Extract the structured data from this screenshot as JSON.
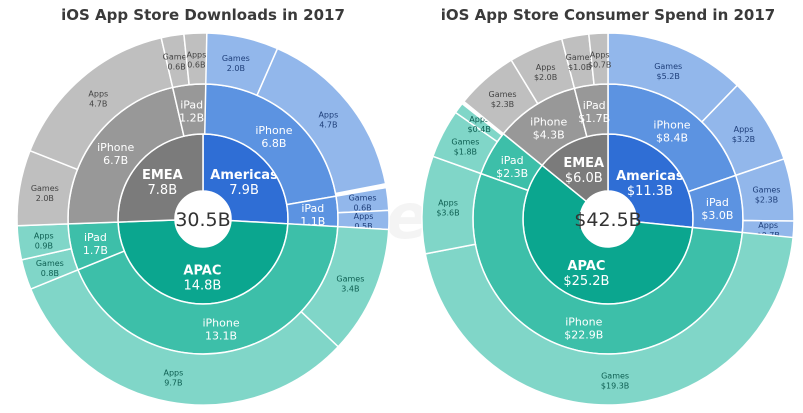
{
  "watermark": "App Annie",
  "colors": {
    "Americas": [
      "#2f6ed5",
      "#5c93e1",
      "#92b7eb"
    ],
    "APAC": [
      "#0ba68f",
      "#3dbfa9",
      "#80d6c8"
    ],
    "EMEA": [
      "#7b7b7b",
      "#989898",
      "#bfbfbf"
    ],
    "leaf_text": {
      "Americas": "#1f3f7a",
      "APAC": "#0e5f52",
      "EMEA": "#444444"
    }
  },
  "chart_data": [
    {
      "type": "sunburst",
      "title": "iOS App Store Downloads in 2017",
      "unit_prefix": "",
      "total_label": "30.5B",
      "total": 30.5,
      "children": [
        {
          "name": "Americas",
          "value": 7.9,
          "label": "7.9B",
          "children": [
            {
              "name": "iPhone",
              "value": 6.8,
              "label": "6.8B",
              "children": [
                {
                  "name": "Games",
                  "value": 2.0,
                  "label": "2.0B"
                },
                {
                  "name": "Apps",
                  "value": 4.7,
                  "label": "4.7B"
                }
              ]
            },
            {
              "name": "iPad",
              "value": 1.1,
              "label": "1.1B",
              "children": [
                {
                  "name": "Games",
                  "value": 0.6,
                  "label": "0.6B"
                },
                {
                  "name": "Apps",
                  "value": 0.5,
                  "label": "0.5B"
                }
              ]
            }
          ]
        },
        {
          "name": "APAC",
          "value": 14.8,
          "label": "14.8B",
          "children": [
            {
              "name": "iPhone",
              "value": 13.1,
              "label": "13.1B",
              "children": [
                {
                  "name": "Games",
                  "value": 3.4,
                  "label": "3.4B"
                },
                {
                  "name": "Apps",
                  "value": 9.7,
                  "label": "9.7B"
                }
              ]
            },
            {
              "name": "iPad",
              "value": 1.7,
              "label": "1.7B",
              "children": [
                {
                  "name": "Games",
                  "value": 0.8,
                  "label": "0.8B"
                },
                {
                  "name": "Apps",
                  "value": 0.9,
                  "label": "0.9B"
                }
              ]
            }
          ]
        },
        {
          "name": "EMEA",
          "value": 7.8,
          "label": "7.8B",
          "children": [
            {
              "name": "iPhone",
              "value": 6.7,
              "label": "6.7B",
              "children": [
                {
                  "name": "Games",
                  "value": 2.0,
                  "label": "2.0B"
                },
                {
                  "name": "Apps",
                  "value": 4.7,
                  "label": "4.7B"
                }
              ]
            },
            {
              "name": "iPad",
              "value": 1.2,
              "label": "1.2B",
              "children": [
                {
                  "name": "Games",
                  "value": 0.6,
                  "label": "0.6B"
                },
                {
                  "name": "Apps",
                  "value": 0.6,
                  "label": "0.6B"
                }
              ]
            }
          ]
        }
      ]
    },
    {
      "type": "sunburst",
      "title": "iOS App Store Consumer Spend in 2017",
      "total_label": "$42.5B",
      "total": 42.5,
      "children": [
        {
          "name": "Americas",
          "value": 11.3,
          "label": "$11.3B",
          "children": [
            {
              "name": "iPhone",
              "value": 8.4,
              "label": "$8.4B",
              "children": [
                {
                  "name": "Games",
                  "value": 5.2,
                  "label": "$5.2B"
                },
                {
                  "name": "Apps",
                  "value": 3.2,
                  "label": "$3.2B"
                }
              ]
            },
            {
              "name": "iPad",
              "value": 3.0,
              "label": "$3.0B",
              "children": [
                {
                  "name": "Games",
                  "value": 2.3,
                  "label": "$2.3B"
                },
                {
                  "name": "Apps",
                  "value": 0.7,
                  "label": "$0.7B"
                }
              ]
            }
          ]
        },
        {
          "name": "APAC",
          "value": 25.2,
          "label": "$25.2B",
          "children": [
            {
              "name": "iPhone",
              "value": 22.9,
              "label": "$22.9B",
              "children": [
                {
                  "name": "Games",
                  "value": 19.3,
                  "label": "$19.3B"
                },
                {
                  "name": "Apps",
                  "value": 3.6,
                  "label": "$3.6B"
                }
              ]
            },
            {
              "name": "iPad",
              "value": 2.3,
              "label": "$2.3B",
              "children": [
                {
                  "name": "Games",
                  "value": 1.8,
                  "label": "$1.8B"
                },
                {
                  "name": "Apps",
                  "value": 0.4,
                  "label": "$0.4B"
                }
              ]
            }
          ]
        },
        {
          "name": "EMEA",
          "value": 6.0,
          "label": "$6.0B",
          "children": [
            {
              "name": "iPhone",
              "value": 4.3,
              "label": "$4.3B",
              "children": [
                {
                  "name": "Games",
                  "value": 2.3,
                  "label": "$2.3B"
                },
                {
                  "name": "Apps",
                  "value": 2.0,
                  "label": "$2.0B"
                }
              ]
            },
            {
              "name": "iPad",
              "value": 1.7,
              "label": "$1.7B",
              "children": [
                {
                  "name": "Games",
                  "value": 1.0,
                  "label": "$1.0B"
                },
                {
                  "name": "Apps",
                  "value": 0.7,
                  "label": "$0.7B"
                }
              ]
            }
          ]
        }
      ]
    }
  ]
}
